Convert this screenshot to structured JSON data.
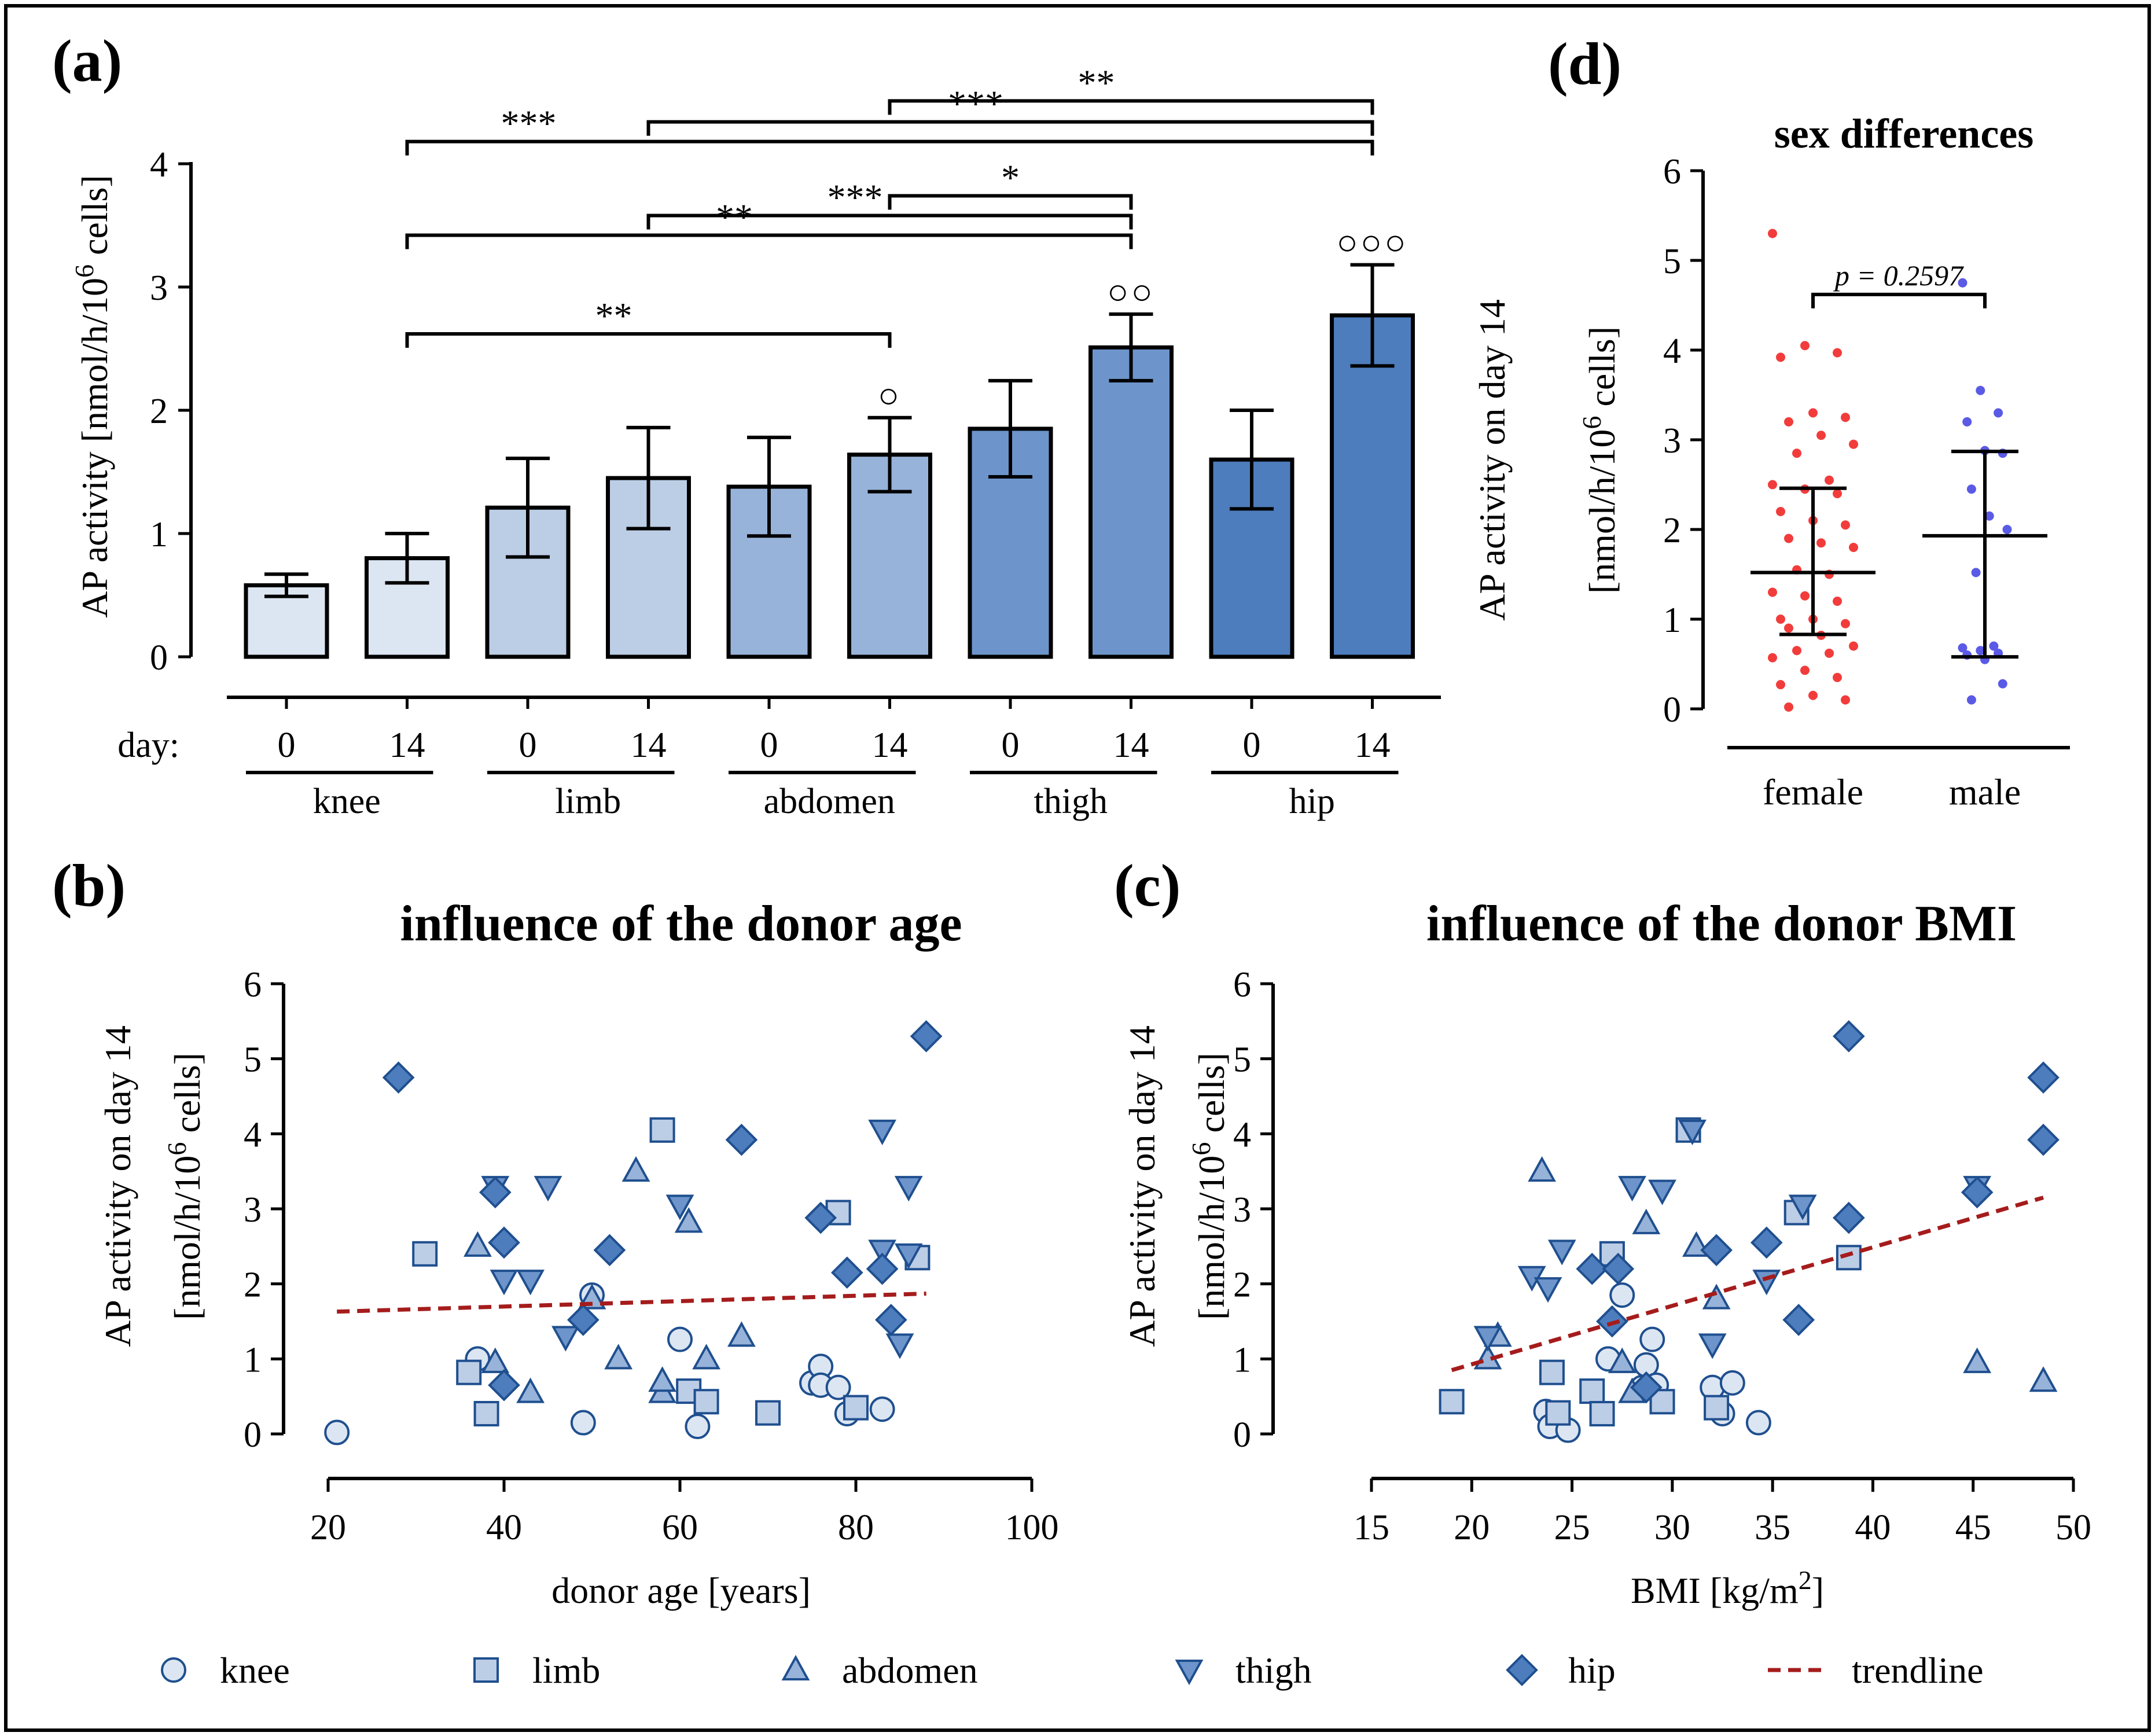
{
  "colors": {
    "knee": "#dce6f2",
    "limb": "#bccde6",
    "abdomen": "#97b3d9",
    "thigh": "#6d95cb",
    "hip": "#4d7dbc",
    "marker_edge": "#1f4f8f",
    "trend": "#a51c1c",
    "female": "#f23c3c",
    "male": "#5a5ae6"
  },
  "chart_data": [
    {
      "panel": "(a)",
      "type": "bar",
      "title": "",
      "ylabel": "AP activity [nmol/h/10",
      "ylabel_sup": "6",
      "ylabel_tail": " cells]",
      "ylim": [
        0,
        4
      ],
      "yticks": [
        "0",
        "1",
        "2",
        "3",
        "4"
      ],
      "x_prefix": "day:",
      "categories": [
        "0",
        "14",
        "0",
        "14",
        "0",
        "14",
        "0",
        "14",
        "0",
        "14"
      ],
      "groups": [
        "knee",
        "limb",
        "abdomen",
        "thigh",
        "hip"
      ],
      "values": [
        0.58,
        0.8,
        1.21,
        1.45,
        1.38,
        1.64,
        1.85,
        2.51,
        1.6,
        2.77
      ],
      "errors": [
        0.09,
        0.2,
        0.4,
        0.41,
        0.4,
        0.3,
        0.39,
        0.27,
        0.4,
        0.41
      ],
      "circle_marks": [
        null,
        null,
        null,
        null,
        null,
        "○",
        null,
        "○○",
        null,
        "○○○"
      ],
      "significance": [
        {
          "from": 1,
          "to": 5,
          "level": 2.62,
          "label": "**"
        },
        {
          "from": 1,
          "to": 7,
          "level": 3.42,
          "label": "**"
        },
        {
          "from": 3,
          "to": 7,
          "level": 3.58,
          "label": "***"
        },
        {
          "from": 5,
          "to": 7,
          "level": 3.74,
          "label": "*"
        },
        {
          "from": 1,
          "to": 9,
          "level": 4.18,
          "label": "***"
        },
        {
          "from": 3,
          "to": 9,
          "level": 4.34,
          "label": "***"
        },
        {
          "from": 5,
          "to": 9,
          "level": 4.51,
          "label": "**"
        }
      ]
    },
    {
      "panel": "(b)",
      "type": "scatter",
      "title": "influence of the donor age",
      "xlabel": "donor age [years]",
      "ylabel": "AP activity on day 14",
      "ylabel2": "[nmol/h/10",
      "ylabel2_sup": "6",
      "ylabel2_tail": " cells]",
      "xlim": [
        20,
        100
      ],
      "ylim": [
        0,
        6
      ],
      "xticks": [
        "20",
        "40",
        "60",
        "80",
        "100"
      ],
      "yticks": [
        "0",
        "1",
        "2",
        "3",
        "4",
        "5",
        "6"
      ],
      "trendline": [
        [
          21,
          1.63
        ],
        [
          88,
          1.87
        ]
      ],
      "series": [
        {
          "name": "knee",
          "marker": "circle",
          "points": [
            [
              21,
              0.02
            ],
            [
              37,
              1.0
            ],
            [
              49,
              0.15
            ],
            [
              50,
              1.85
            ],
            [
              60,
              1.26
            ],
            [
              62,
              0.1
            ],
            [
              75,
              0.68
            ],
            [
              76,
              0.9
            ],
            [
              76,
              0.65
            ],
            [
              78,
              0.62
            ],
            [
              79,
              0.27
            ],
            [
              83,
              0.33
            ]
          ]
        },
        {
          "name": "limb",
          "marker": "square",
          "points": [
            [
              31,
              2.4
            ],
            [
              36,
              0.82
            ],
            [
              38,
              0.27
            ],
            [
              58,
              4.05
            ],
            [
              61,
              0.57
            ],
            [
              63,
              0.43
            ],
            [
              70,
              0.28
            ],
            [
              78,
              2.95
            ],
            [
              80,
              0.35
            ],
            [
              87,
              2.35
            ]
          ]
        },
        {
          "name": "abdomen",
          "marker": "triangle-up",
          "points": [
            [
              37,
              2.5
            ],
            [
              39,
              0.95
            ],
            [
              43,
              0.55
            ],
            [
              50,
              1.8
            ],
            [
              53,
              1.0
            ],
            [
              55,
              3.5
            ],
            [
              58,
              0.55
            ],
            [
              58,
              0.7
            ],
            [
              61,
              2.82
            ],
            [
              63,
              1.0
            ],
            [
              67,
              1.3
            ]
          ]
        },
        {
          "name": "thigh",
          "marker": "triangle-down",
          "points": [
            [
              39,
              3.3
            ],
            [
              40,
              2.05
            ],
            [
              43,
              2.05
            ],
            [
              45,
              3.3
            ],
            [
              47,
              1.3
            ],
            [
              60,
              3.05
            ],
            [
              83,
              4.05
            ],
            [
              83,
              2.45
            ],
            [
              85,
              1.2
            ],
            [
              86,
              3.3
            ],
            [
              86,
              2.4
            ]
          ]
        },
        {
          "name": "hip",
          "marker": "diamond",
          "points": [
            [
              28,
              4.75
            ],
            [
              39,
              3.22
            ],
            [
              40,
              0.65
            ],
            [
              40,
              2.55
            ],
            [
              49,
              1.52
            ],
            [
              52,
              2.45
            ],
            [
              67,
              3.92
            ],
            [
              76,
              2.88
            ],
            [
              79,
              2.15
            ],
            [
              83,
              2.2
            ],
            [
              84,
              1.52
            ],
            [
              88,
              5.3
            ]
          ]
        }
      ]
    },
    {
      "panel": "(c)",
      "type": "scatter",
      "title": "influence of the donor BMI",
      "xlabel": "BMI [kg/m",
      "xlabel_sup": "2",
      "xlabel_tail": "]",
      "ylabel": "AP activity on day 14",
      "ylabel2": "[nmol/h/10",
      "ylabel2_sup": "6",
      "ylabel2_tail": " cells]",
      "xlim": [
        15,
        50
      ],
      "ylim": [
        0,
        6
      ],
      "xticks": [
        "15",
        "20",
        "25",
        "30",
        "35",
        "40",
        "45",
        "50"
      ],
      "yticks": [
        "0",
        "1",
        "2",
        "3",
        "4",
        "5",
        "6"
      ],
      "trendline": [
        [
          19,
          0.85
        ],
        [
          48.5,
          3.15
        ]
      ],
      "series": [
        {
          "name": "knee",
          "marker": "circle",
          "points": [
            [
              23.7,
              0.3
            ],
            [
              23.9,
              0.1
            ],
            [
              24.8,
              0.05
            ],
            [
              26.8,
              1.0
            ],
            [
              27.5,
              1.85
            ],
            [
              28.5,
              0.62
            ],
            [
              28.7,
              0.92
            ],
            [
              29.0,
              1.26
            ],
            [
              29.2,
              0.65
            ],
            [
              32.0,
              0.62
            ],
            [
              32.5,
              0.27
            ],
            [
              33.0,
              0.68
            ],
            [
              34.3,
              0.15
            ]
          ]
        },
        {
          "name": "limb",
          "marker": "square",
          "points": [
            [
              19.0,
              0.43
            ],
            [
              24.0,
              0.82
            ],
            [
              24.3,
              0.28
            ],
            [
              26.0,
              0.57
            ],
            [
              26.5,
              0.27
            ],
            [
              27.0,
              2.4
            ],
            [
              29.5,
              0.43
            ],
            [
              30.8,
              4.05
            ],
            [
              32.2,
              0.35
            ],
            [
              36.2,
              2.95
            ],
            [
              38.8,
              2.35
            ]
          ]
        },
        {
          "name": "abdomen",
          "marker": "triangle-up",
          "points": [
            [
              20.8,
              1.0
            ],
            [
              21.3,
              1.3
            ],
            [
              23.5,
              3.5
            ],
            [
              27.5,
              0.95
            ],
            [
              28.0,
              0.55
            ],
            [
              28.7,
              2.8
            ],
            [
              31.2,
              2.5
            ],
            [
              32.2,
              1.8
            ],
            [
              45.2,
              0.95
            ],
            [
              48.5,
              0.7
            ]
          ]
        },
        {
          "name": "thigh",
          "marker": "triangle-down",
          "points": [
            [
              20.8,
              1.3
            ],
            [
              23.0,
              2.1
            ],
            [
              23.8,
              1.95
            ],
            [
              24.5,
              2.45
            ],
            [
              28.0,
              3.3
            ],
            [
              29.5,
              3.25
            ],
            [
              31.0,
              4.05
            ],
            [
              32.0,
              1.2
            ],
            [
              34.7,
              2.05
            ],
            [
              36.5,
              3.05
            ],
            [
              45.2,
              3.3
            ]
          ]
        },
        {
          "name": "hip",
          "marker": "diamond",
          "points": [
            [
              26.0,
              2.2
            ],
            [
              27.0,
              1.5
            ],
            [
              27.3,
              2.2
            ],
            [
              28.7,
              0.62
            ],
            [
              32.2,
              2.45
            ],
            [
              34.7,
              2.55
            ],
            [
              36.3,
              1.52
            ],
            [
              38.8,
              5.3
            ],
            [
              38.8,
              2.88
            ],
            [
              45.2,
              3.22
            ],
            [
              48.5,
              4.75
            ],
            [
              48.5,
              3.92
            ]
          ]
        }
      ]
    },
    {
      "panel": "(d)",
      "type": "scatter",
      "title": "sex differences",
      "xlabel": "",
      "ylabel": "AP activity on day 14",
      "ylabel2": "[nmol/h/10",
      "ylabel2_sup": "6",
      "ylabel2_tail": " cells]",
      "ylim": [
        0,
        6
      ],
      "yticks": [
        "0",
        "1",
        "2",
        "3",
        "4",
        "5",
        "6"
      ],
      "categories": [
        "female",
        "male"
      ],
      "p_label": "p = 0.2597",
      "series": [
        {
          "name": "female",
          "mean": 1.52,
          "sd_low": 0.83,
          "sd_high": 2.46,
          "values": [
            5.3,
            4.05,
            3.97,
            3.92,
            3.3,
            3.25,
            3.2,
            3.05,
            2.95,
            2.85,
            2.55,
            2.5,
            2.45,
            2.4,
            2.2,
            2.1,
            2.05,
            1.9,
            1.85,
            1.8,
            1.55,
            1.5,
            1.3,
            1.26,
            1.2,
            1.0,
            1.0,
            0.95,
            0.9,
            0.82,
            0.7,
            0.65,
            0.62,
            0.57,
            0.43,
            0.35,
            0.27,
            0.15,
            0.1,
            0.02
          ]
        },
        {
          "name": "male",
          "mean": 1.93,
          "sd_low": 0.58,
          "sd_high": 2.87,
          "values": [
            4.75,
            3.55,
            3.3,
            3.2,
            2.88,
            2.85,
            2.45,
            2.15,
            2.0,
            1.52,
            0.7,
            0.68,
            0.65,
            0.62,
            0.6,
            0.55,
            0.28,
            0.1
          ]
        }
      ]
    }
  ],
  "legend": {
    "items": [
      {
        "label": "knee",
        "marker": "circle"
      },
      {
        "label": "limb",
        "marker": "square"
      },
      {
        "label": "abdomen",
        "marker": "triangle-up"
      },
      {
        "label": "thigh",
        "marker": "triangle-down"
      },
      {
        "label": "hip",
        "marker": "diamond"
      },
      {
        "label": "trendline",
        "marker": "dashed-line"
      }
    ]
  }
}
